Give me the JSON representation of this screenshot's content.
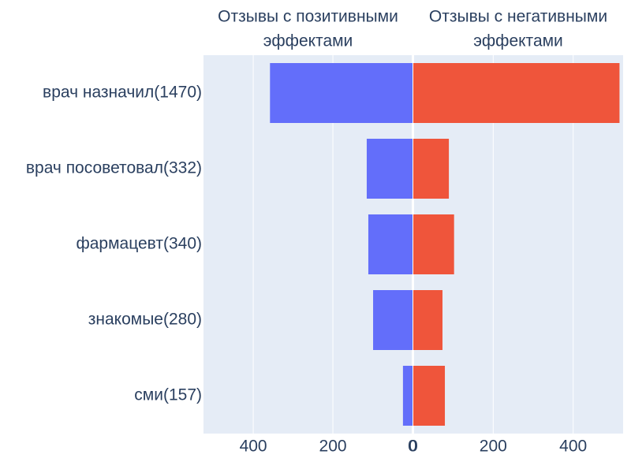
{
  "chart_data": {
    "type": "bar",
    "orientation": "horizontal",
    "grid": true,
    "background": "#e5ecf6",
    "categories": [
      "врач назначил(1470)",
      "врач посоветовал(332)",
      "фармацевт(340)",
      "знакомые(280)",
      "сми(157)"
    ],
    "panels": [
      {
        "title_lines": [
          "Отзывы с позитивными",
          "эффектами"
        ],
        "xlim": [
          525,
          0
        ],
        "xticks": [
          400,
          200,
          0
        ],
        "series": [
          {
            "color": "#636efa",
            "values": [
              358,
              115,
              111,
              99,
              24
            ]
          }
        ]
      },
      {
        "title_lines": [
          "Отзывы с негативными",
          "эффектами"
        ],
        "xlim": [
          0,
          525
        ],
        "xticks": [
          0,
          200,
          400
        ],
        "series": [
          {
            "color": "#ef553b",
            "values": [
              516,
              89,
              102,
              73,
              79
            ]
          }
        ]
      }
    ]
  }
}
